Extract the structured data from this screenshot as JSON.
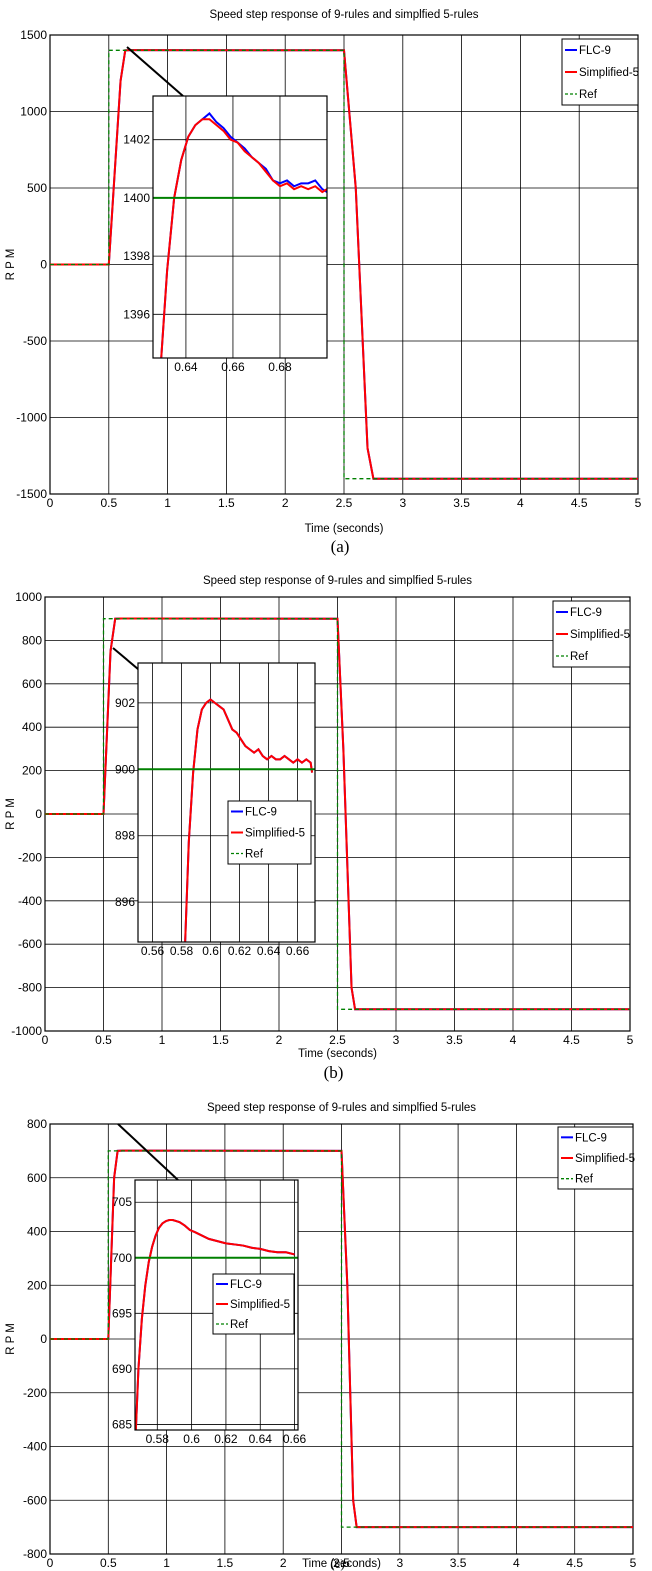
{
  "figure": {
    "panel_labels": [
      "(a)",
      "(b)",
      "(c)"
    ]
  },
  "colors": {
    "flc9": "#0000ff",
    "simplified5": "#ff0000",
    "ref": "#008000",
    "grid": "#000000",
    "connector": "#000000"
  },
  "chart_data": [
    {
      "type": "line",
      "panel": "(a)",
      "title": "Speed step response of 9-rules and simplfied 5-rules",
      "xlabel": "Time (seconds)",
      "ylabel": "R P M",
      "xlim": [
        0,
        5
      ],
      "ylim": [
        -1500,
        1500
      ],
      "xticks": [
        0,
        0.5,
        1,
        1.5,
        2,
        2.5,
        3,
        3.5,
        4,
        4.5,
        5
      ],
      "xtick_labels": [
        "0",
        "0.5",
        "1",
        "1.5",
        "2",
        "2.5",
        "3",
        "3.5",
        "4",
        "4.5",
        "5"
      ],
      "yticks": [
        -1500,
        -1000,
        -500,
        0,
        500,
        1000,
        1500
      ],
      "ytick_labels": [
        "-1500",
        "-1000",
        "-500",
        "0",
        "500",
        "1000",
        "1500"
      ],
      "grid": true,
      "legend": {
        "position": "top-right",
        "entries": [
          "FLC-9",
          "Simplified-5",
          "Ref"
        ]
      },
      "series": [
        {
          "name": "FLC-9",
          "style": "solid",
          "x": [
            0,
            0.5,
            0.6,
            0.64,
            0.7,
            2.5,
            2.6,
            2.7,
            2.75,
            5
          ],
          "y": [
            0,
            0,
            1200,
            1400,
            1401,
            1400,
            500,
            -1200,
            -1400,
            -1400
          ]
        },
        {
          "name": "Simplified-5",
          "style": "solid",
          "x": [
            0,
            0.5,
            0.6,
            0.64,
            0.7,
            2.5,
            2.6,
            2.7,
            2.75,
            5
          ],
          "y": [
            0,
            0,
            1200,
            1400,
            1401,
            1400,
            500,
            -1200,
            -1400,
            -1400
          ]
        },
        {
          "name": "Ref",
          "style": "dashed",
          "x": [
            0,
            0.5,
            0.5,
            2.5,
            2.5,
            5
          ],
          "y": [
            0,
            0,
            1400,
            1400,
            -1400,
            -1400
          ]
        }
      ],
      "inset": {
        "xlim": [
          0.626,
          0.7
        ],
        "ylim": [
          1394.5,
          1403.5
        ],
        "xticks": [
          0.64,
          0.66,
          0.68
        ],
        "xtick_labels": [
          "0.64",
          "0.66",
          "0.68"
        ],
        "yticks": [
          1396,
          1398,
          1400,
          1402
        ],
        "ytick_labels": [
          "1396",
          "1398",
          "1400",
          "1402"
        ],
        "series": [
          {
            "name": "FLC-9",
            "style": "solid",
            "x": [
              0.6295,
              0.632,
              0.635,
              0.638,
              0.641,
              0.644,
              0.647,
              0.65,
              0.653,
              0.656,
              0.659,
              0.662,
              0.665,
              0.668,
              0.671,
              0.674,
              0.677,
              0.68,
              0.683,
              0.686,
              0.689,
              0.692,
              0.695,
              0.698,
              0.7
            ],
            "y": [
              1394.5,
              1397.5,
              1400,
              1401.3,
              1402.1,
              1402.5,
              1402.7,
              1402.9,
              1402.6,
              1402.4,
              1402.1,
              1401.9,
              1401.7,
              1401.4,
              1401.2,
              1401.0,
              1400.6,
              1400.5,
              1400.6,
              1400.4,
              1400.5,
              1400.5,
              1400.6,
              1400.3,
              1400.2
            ]
          },
          {
            "name": "Simplified-5",
            "style": "solid",
            "x": [
              0.6295,
              0.632,
              0.635,
              0.638,
              0.641,
              0.644,
              0.647,
              0.65,
              0.653,
              0.656,
              0.659,
              0.662,
              0.665,
              0.668,
              0.671,
              0.674,
              0.677,
              0.68,
              0.683,
              0.686,
              0.689,
              0.692,
              0.695,
              0.698,
              0.7
            ],
            "y": [
              1394.5,
              1397.5,
              1400,
              1401.3,
              1402.1,
              1402.5,
              1402.7,
              1402.7,
              1402.5,
              1402.3,
              1402.0,
              1401.9,
              1401.6,
              1401.4,
              1401.2,
              1400.9,
              1400.6,
              1400.4,
              1400.5,
              1400.3,
              1400.4,
              1400.3,
              1400.4,
              1400.2,
              1400.3
            ]
          },
          {
            "name": "Ref",
            "style": "solid",
            "x": [
              0.626,
              0.7
            ],
            "y": [
              1400,
              1400
            ]
          }
        ]
      }
    },
    {
      "type": "line",
      "panel": "(b)",
      "title": "Speed step response of 9-rules and simplfied 5-rules",
      "xlabel": "Time (seconds)",
      "ylabel": "R P M",
      "xlim": [
        0,
        5
      ],
      "ylim": [
        -1000,
        1000
      ],
      "xticks": [
        0,
        0.5,
        1,
        1.5,
        2,
        2.5,
        3,
        3.5,
        4,
        4.5,
        5
      ],
      "xtick_labels": [
        "0",
        "0.5",
        "1",
        "1.5",
        "2",
        "2.5",
        "3",
        "3.5",
        "4",
        "4.5",
        "5"
      ],
      "yticks": [
        -1000,
        -800,
        -600,
        -400,
        -200,
        0,
        200,
        400,
        600,
        800,
        1000
      ],
      "ytick_labels": [
        "-1000",
        "-800",
        "-600",
        "-400",
        "-200",
        "0",
        "200",
        "400",
        "600",
        "800",
        "1000"
      ],
      "grid": true,
      "legend": {
        "position": "top-right",
        "entries": [
          "FLC-9",
          "Simplified-5",
          "Ref"
        ]
      },
      "series": [
        {
          "name": "FLC-9",
          "style": "solid",
          "x": [
            0,
            0.5,
            0.56,
            0.6,
            0.65,
            2.5,
            2.55,
            2.62,
            2.65,
            5
          ],
          "y": [
            0,
            0,
            750,
            900,
            901,
            900,
            300,
            -800,
            -900,
            -900
          ]
        },
        {
          "name": "Simplified-5",
          "style": "solid",
          "x": [
            0,
            0.5,
            0.56,
            0.6,
            0.65,
            2.5,
            2.55,
            2.62,
            2.65,
            5
          ],
          "y": [
            0,
            0,
            750,
            900,
            901,
            900,
            300,
            -800,
            -900,
            -900
          ]
        },
        {
          "name": "Ref",
          "style": "dashed",
          "x": [
            0,
            0.5,
            0.5,
            2.5,
            2.5,
            5
          ],
          "y": [
            0,
            0,
            900,
            900,
            -900,
            -900
          ]
        }
      ],
      "inset": {
        "xlim": [
          0.55,
          0.672
        ],
        "ylim": [
          894.8,
          903.2
        ],
        "xticks": [
          0.56,
          0.58,
          0.6,
          0.62,
          0.64,
          0.66
        ],
        "xtick_labels": [
          "0.56",
          "0.58",
          "0.6",
          "0.62",
          "0.64",
          "0.66"
        ],
        "yticks": [
          896,
          898,
          900,
          902
        ],
        "ytick_labels": [
          "896",
          "898",
          "900",
          "902"
        ],
        "legend": {
          "entries": [
            "FLC-9",
            "Simplified-5",
            "Ref"
          ]
        },
        "series": [
          {
            "name": "FLC-9",
            "style": "solid",
            "x": [
              0.5825,
              0.585,
              0.588,
              0.591,
              0.594,
              0.597,
              0.6,
              0.603,
              0.606,
              0.609,
              0.612,
              0.615,
              0.618,
              0.621,
              0.624,
              0.627,
              0.63,
              0.633,
              0.636,
              0.639,
              0.642,
              0.645,
              0.648,
              0.651,
              0.654,
              0.657,
              0.66,
              0.663,
              0.666,
              0.669,
              0.67
            ],
            "y": [
              894.8,
              897.8,
              899.9,
              901.2,
              901.8,
              902.0,
              902.1,
              902.0,
              901.9,
              901.8,
              901.5,
              901.2,
              901.1,
              900.9,
              900.7,
              900.6,
              900.5,
              900.6,
              900.4,
              900.3,
              900.4,
              900.3,
              900.3,
              900.4,
              900.3,
              900.2,
              900.3,
              900.2,
              900.3,
              900.2,
              899.9
            ]
          },
          {
            "name": "Simplified-5",
            "style": "solid",
            "x": [
              0.5825,
              0.585,
              0.588,
              0.591,
              0.594,
              0.597,
              0.6,
              0.603,
              0.606,
              0.609,
              0.612,
              0.615,
              0.618,
              0.621,
              0.624,
              0.627,
              0.63,
              0.633,
              0.636,
              0.639,
              0.642,
              0.645,
              0.648,
              0.651,
              0.654,
              0.657,
              0.66,
              0.663,
              0.666,
              0.669,
              0.67
            ],
            "y": [
              894.8,
              897.8,
              899.9,
              901.2,
              901.8,
              902.0,
              902.1,
              902.0,
              901.9,
              901.8,
              901.5,
              901.2,
              901.1,
              900.9,
              900.7,
              900.6,
              900.5,
              900.6,
              900.4,
              900.3,
              900.4,
              900.3,
              900.3,
              900.4,
              900.3,
              900.2,
              900.3,
              900.2,
              900.3,
              900.2,
              899.9
            ]
          },
          {
            "name": "Ref",
            "style": "solid",
            "x": [
              0.55,
              0.672
            ],
            "y": [
              900,
              900
            ]
          }
        ]
      }
    },
    {
      "type": "line",
      "panel": "(c)",
      "title": "Speed step response of 9-rules and simplfied 5-rules",
      "xlabel": "Time (seconds)",
      "ylabel": "R P M",
      "xlim": [
        0,
        5
      ],
      "ylim": [
        -800,
        800
      ],
      "xticks": [
        0,
        0.5,
        1,
        1.5,
        2,
        2.5,
        3,
        3.5,
        4,
        4.5,
        5
      ],
      "xtick_labels": [
        "0",
        "0.5",
        "1",
        "1.5",
        "2",
        "2.5",
        "3",
        "3.5",
        "4",
        "4.5",
        "5"
      ],
      "yticks": [
        -800,
        -600,
        -400,
        -200,
        0,
        200,
        400,
        600,
        800
      ],
      "ytick_labels": [
        "-800",
        "-600",
        "-400",
        "-200",
        "0",
        "200",
        "400",
        "600",
        "800"
      ],
      "grid": true,
      "legend": {
        "position": "top-right",
        "entries": [
          "FLC-9",
          "Simplified-5",
          "Ref"
        ]
      },
      "series": [
        {
          "name": "FLC-9",
          "style": "solid",
          "x": [
            0,
            0.5,
            0.55,
            0.58,
            0.62,
            2.5,
            2.55,
            2.6,
            2.63,
            5
          ],
          "y": [
            0,
            0,
            600,
            700,
            701,
            700,
            200,
            -600,
            -700,
            -700
          ]
        },
        {
          "name": "Simplified-5",
          "style": "solid",
          "x": [
            0,
            0.5,
            0.55,
            0.58,
            0.62,
            2.5,
            2.55,
            2.6,
            2.63,
            5
          ],
          "y": [
            0,
            0,
            600,
            700,
            701,
            700,
            200,
            -600,
            -700,
            -700
          ]
        },
        {
          "name": "Ref",
          "style": "dashed",
          "x": [
            0,
            0.5,
            0.5,
            2.5,
            2.5,
            5
          ],
          "y": [
            0,
            0,
            700,
            700,
            -700,
            -700
          ]
        }
      ],
      "inset": {
        "xlim": [
          0.567,
          0.662
        ],
        "ylim": [
          684.5,
          707
        ],
        "xticks": [
          0.58,
          0.6,
          0.62,
          0.64,
          0.66
        ],
        "xtick_labels": [
          "0.58",
          "0.6",
          "0.62",
          "0.64",
          "0.66"
        ],
        "yticks": [
          685,
          690,
          695,
          700,
          705
        ],
        "ytick_labels": [
          "685",
          "690",
          "695",
          "700",
          "705"
        ],
        "legend": {
          "entries": [
            "FLC-9",
            "Simplified-5",
            "Ref"
          ]
        },
        "series": [
          {
            "name": "FLC-9",
            "style": "solid",
            "x": [
              0.5675,
              0.569,
              0.571,
              0.573,
              0.575,
              0.577,
              0.579,
              0.581,
              0.583,
              0.585,
              0.587,
              0.589,
              0.591,
              0.593,
              0.596,
              0.599,
              0.602,
              0.606,
              0.61,
              0.615,
              0.62,
              0.625,
              0.63,
              0.635,
              0.64,
              0.645,
              0.65,
              0.655,
              0.66
            ],
            "y": [
              684.5,
              690.0,
              694.5,
              697.5,
              699.6,
              701.0,
              702.0,
              702.7,
              703.1,
              703.3,
              703.4,
              703.4,
              703.3,
              703.2,
              702.9,
              702.5,
              702.3,
              702.0,
              701.7,
              701.5,
              701.3,
              701.2,
              701.1,
              700.9,
              700.8,
              700.6,
              700.5,
              700.5,
              700.3
            ]
          },
          {
            "name": "Simplified-5",
            "style": "solid",
            "x": [
              0.5675,
              0.569,
              0.571,
              0.573,
              0.575,
              0.577,
              0.579,
              0.581,
              0.583,
              0.585,
              0.587,
              0.589,
              0.591,
              0.593,
              0.596,
              0.599,
              0.602,
              0.606,
              0.61,
              0.615,
              0.62,
              0.625,
              0.63,
              0.635,
              0.64,
              0.645,
              0.65,
              0.655,
              0.66
            ],
            "y": [
              684.5,
              690.0,
              694.5,
              697.5,
              699.6,
              701.0,
              702.0,
              702.7,
              703.1,
              703.3,
              703.4,
              703.4,
              703.3,
              703.2,
              702.9,
              702.5,
              702.3,
              702.0,
              701.7,
              701.5,
              701.3,
              701.2,
              701.1,
              700.9,
              700.8,
              700.6,
              700.5,
              700.5,
              700.3
            ]
          },
          {
            "name": "Ref",
            "style": "solid",
            "x": [
              0.567,
              0.662
            ],
            "y": [
              700,
              700
            ]
          }
        ]
      }
    }
  ]
}
